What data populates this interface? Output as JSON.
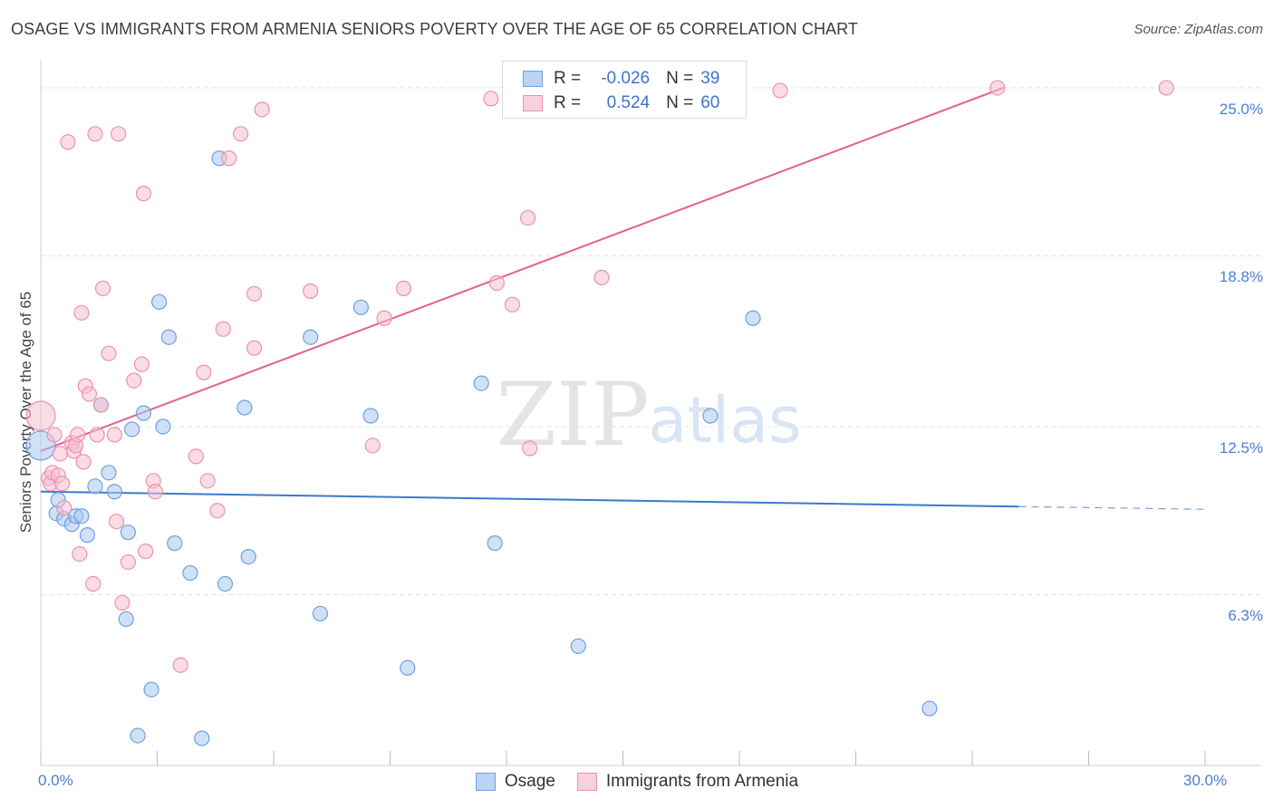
{
  "header": {
    "title": "OSAGE VS IMMIGRANTS FROM ARMENIA SENIORS POVERTY OVER THE AGE OF 65 CORRELATION CHART",
    "source": "Source: ZipAtlas.com"
  },
  "watermark": {
    "zip": "ZIP",
    "atlas": "atlas"
  },
  "stats_legend": {
    "rows": [
      {
        "r_label": "R =",
        "r_value": "-0.026",
        "n_label": "N =",
        "n_value": "39"
      },
      {
        "r_label": "R =",
        "r_value": "0.524",
        "n_label": "N =",
        "n_value": "60"
      }
    ]
  },
  "series_legend": {
    "osage": "Osage",
    "armenia": "Immigrants from Armenia"
  },
  "colors": {
    "osage_fill": "#a9c8f0",
    "osage_stroke": "#6f9fdf",
    "osage_line": "#3b78cf",
    "armenia_fill": "#f6bfd0",
    "armenia_stroke": "#ec92ae",
    "armenia_line": "#e2608a",
    "grid": "#e3e3e3",
    "tick_text": "#4a7fd0"
  },
  "chart_data": {
    "type": "scatter",
    "title": "OSAGE VS IMMIGRANTS FROM ARMENIA SENIORS POVERTY OVER THE AGE OF 65 CORRELATION CHART",
    "xlabel": "",
    "ylabel": "Seniors Poverty Over the Age of 65",
    "xlim": [
      0,
      30
    ],
    "ylim": [
      0,
      25.8
    ],
    "x_tick_labels": [
      {
        "value": 0,
        "label": "0.0%"
      },
      {
        "value": 30,
        "label": "30.0%"
      }
    ],
    "y_tick_labels": [
      {
        "value": 6.3,
        "label": "6.3%"
      },
      {
        "value": 12.5,
        "label": "12.5%"
      },
      {
        "value": 18.8,
        "label": "18.8%"
      },
      {
        "value": 25.0,
        "label": "25.0%"
      }
    ],
    "x_minor_ticks": [
      0,
      3,
      6,
      9,
      12,
      15,
      18,
      21,
      24,
      27,
      30
    ],
    "series": [
      {
        "name": "Osage",
        "r": -0.026,
        "n": 39,
        "trend": {
          "x_start": 0,
          "y_start": 10.1,
          "x_solid_end": 25.2,
          "y_solid_end": 9.55,
          "x_end": 30,
          "y_end": 9.45
        },
        "points": [
          [
            0.0,
            11.8
          ],
          [
            0.4,
            9.3
          ],
          [
            0.45,
            9.8
          ],
          [
            0.6,
            9.1
          ],
          [
            0.8,
            8.9
          ],
          [
            0.9,
            9.2
          ],
          [
            1.05,
            9.2
          ],
          [
            1.2,
            8.5
          ],
          [
            1.4,
            10.3
          ],
          [
            1.55,
            13.3
          ],
          [
            1.75,
            10.8
          ],
          [
            1.9,
            10.1
          ],
          [
            2.2,
            5.4
          ],
          [
            2.25,
            8.6
          ],
          [
            2.35,
            12.4
          ],
          [
            2.5,
            1.1
          ],
          [
            2.65,
            13.0
          ],
          [
            2.85,
            2.8
          ],
          [
            3.05,
            17.1
          ],
          [
            3.15,
            12.5
          ],
          [
            3.3,
            15.8
          ],
          [
            3.45,
            8.2
          ],
          [
            3.85,
            7.1
          ],
          [
            4.15,
            1.0
          ],
          [
            4.6,
            22.4
          ],
          [
            4.75,
            6.7
          ],
          [
            5.25,
            13.2
          ],
          [
            5.35,
            7.7
          ],
          [
            6.95,
            15.8
          ],
          [
            7.2,
            5.6
          ],
          [
            8.25,
            16.9
          ],
          [
            8.5,
            12.9
          ],
          [
            9.45,
            3.6
          ],
          [
            11.35,
            14.1
          ],
          [
            11.7,
            8.2
          ],
          [
            13.85,
            4.4
          ],
          [
            17.25,
            12.9
          ],
          [
            18.35,
            16.5
          ],
          [
            22.9,
            2.1
          ]
        ]
      },
      {
        "name": "Immigrants from Armenia",
        "r": 0.524,
        "n": 60,
        "trend": {
          "x_start": 0,
          "y_start": 11.6,
          "x_end": 24.8,
          "y_end": 25.0
        },
        "points": [
          [
            0.0,
            12.9
          ],
          [
            0.2,
            10.6
          ],
          [
            0.25,
            10.4
          ],
          [
            0.3,
            10.8
          ],
          [
            0.35,
            12.2
          ],
          [
            0.45,
            10.7
          ],
          [
            0.5,
            11.5
          ],
          [
            0.55,
            10.4
          ],
          [
            0.6,
            9.5
          ],
          [
            0.7,
            23.0
          ],
          [
            0.8,
            11.9
          ],
          [
            0.85,
            11.6
          ],
          [
            0.9,
            11.8
          ],
          [
            0.95,
            12.2
          ],
          [
            1.0,
            7.8
          ],
          [
            1.05,
            16.7
          ],
          [
            1.1,
            11.2
          ],
          [
            1.15,
            14.0
          ],
          [
            1.25,
            13.7
          ],
          [
            1.35,
            6.7
          ],
          [
            1.4,
            23.3
          ],
          [
            1.45,
            12.2
          ],
          [
            1.55,
            13.3
          ],
          [
            1.6,
            17.6
          ],
          [
            1.75,
            15.2
          ],
          [
            1.9,
            12.2
          ],
          [
            1.95,
            9.0
          ],
          [
            2.0,
            23.3
          ],
          [
            2.1,
            6.0
          ],
          [
            2.25,
            7.5
          ],
          [
            2.4,
            14.2
          ],
          [
            2.6,
            14.8
          ],
          [
            2.65,
            21.1
          ],
          [
            2.7,
            7.9
          ],
          [
            2.9,
            10.5
          ],
          [
            2.95,
            10.1
          ],
          [
            3.6,
            3.7
          ],
          [
            4.0,
            11.4
          ],
          [
            4.2,
            14.5
          ],
          [
            4.3,
            10.5
          ],
          [
            4.55,
            9.4
          ],
          [
            4.7,
            16.1
          ],
          [
            4.85,
            22.4
          ],
          [
            5.15,
            23.3
          ],
          [
            5.5,
            15.4
          ],
          [
            5.5,
            17.4
          ],
          [
            5.7,
            24.2
          ],
          [
            6.95,
            17.5
          ],
          [
            8.55,
            11.8
          ],
          [
            8.85,
            16.5
          ],
          [
            9.35,
            17.6
          ],
          [
            11.6,
            24.6
          ],
          [
            11.75,
            17.8
          ],
          [
            12.15,
            17.0
          ],
          [
            12.55,
            20.2
          ],
          [
            12.6,
            11.7
          ],
          [
            14.45,
            18.0
          ],
          [
            19.05,
            24.9
          ],
          [
            24.65,
            25.0
          ],
          [
            29.0,
            25.0
          ]
        ]
      }
    ]
  }
}
